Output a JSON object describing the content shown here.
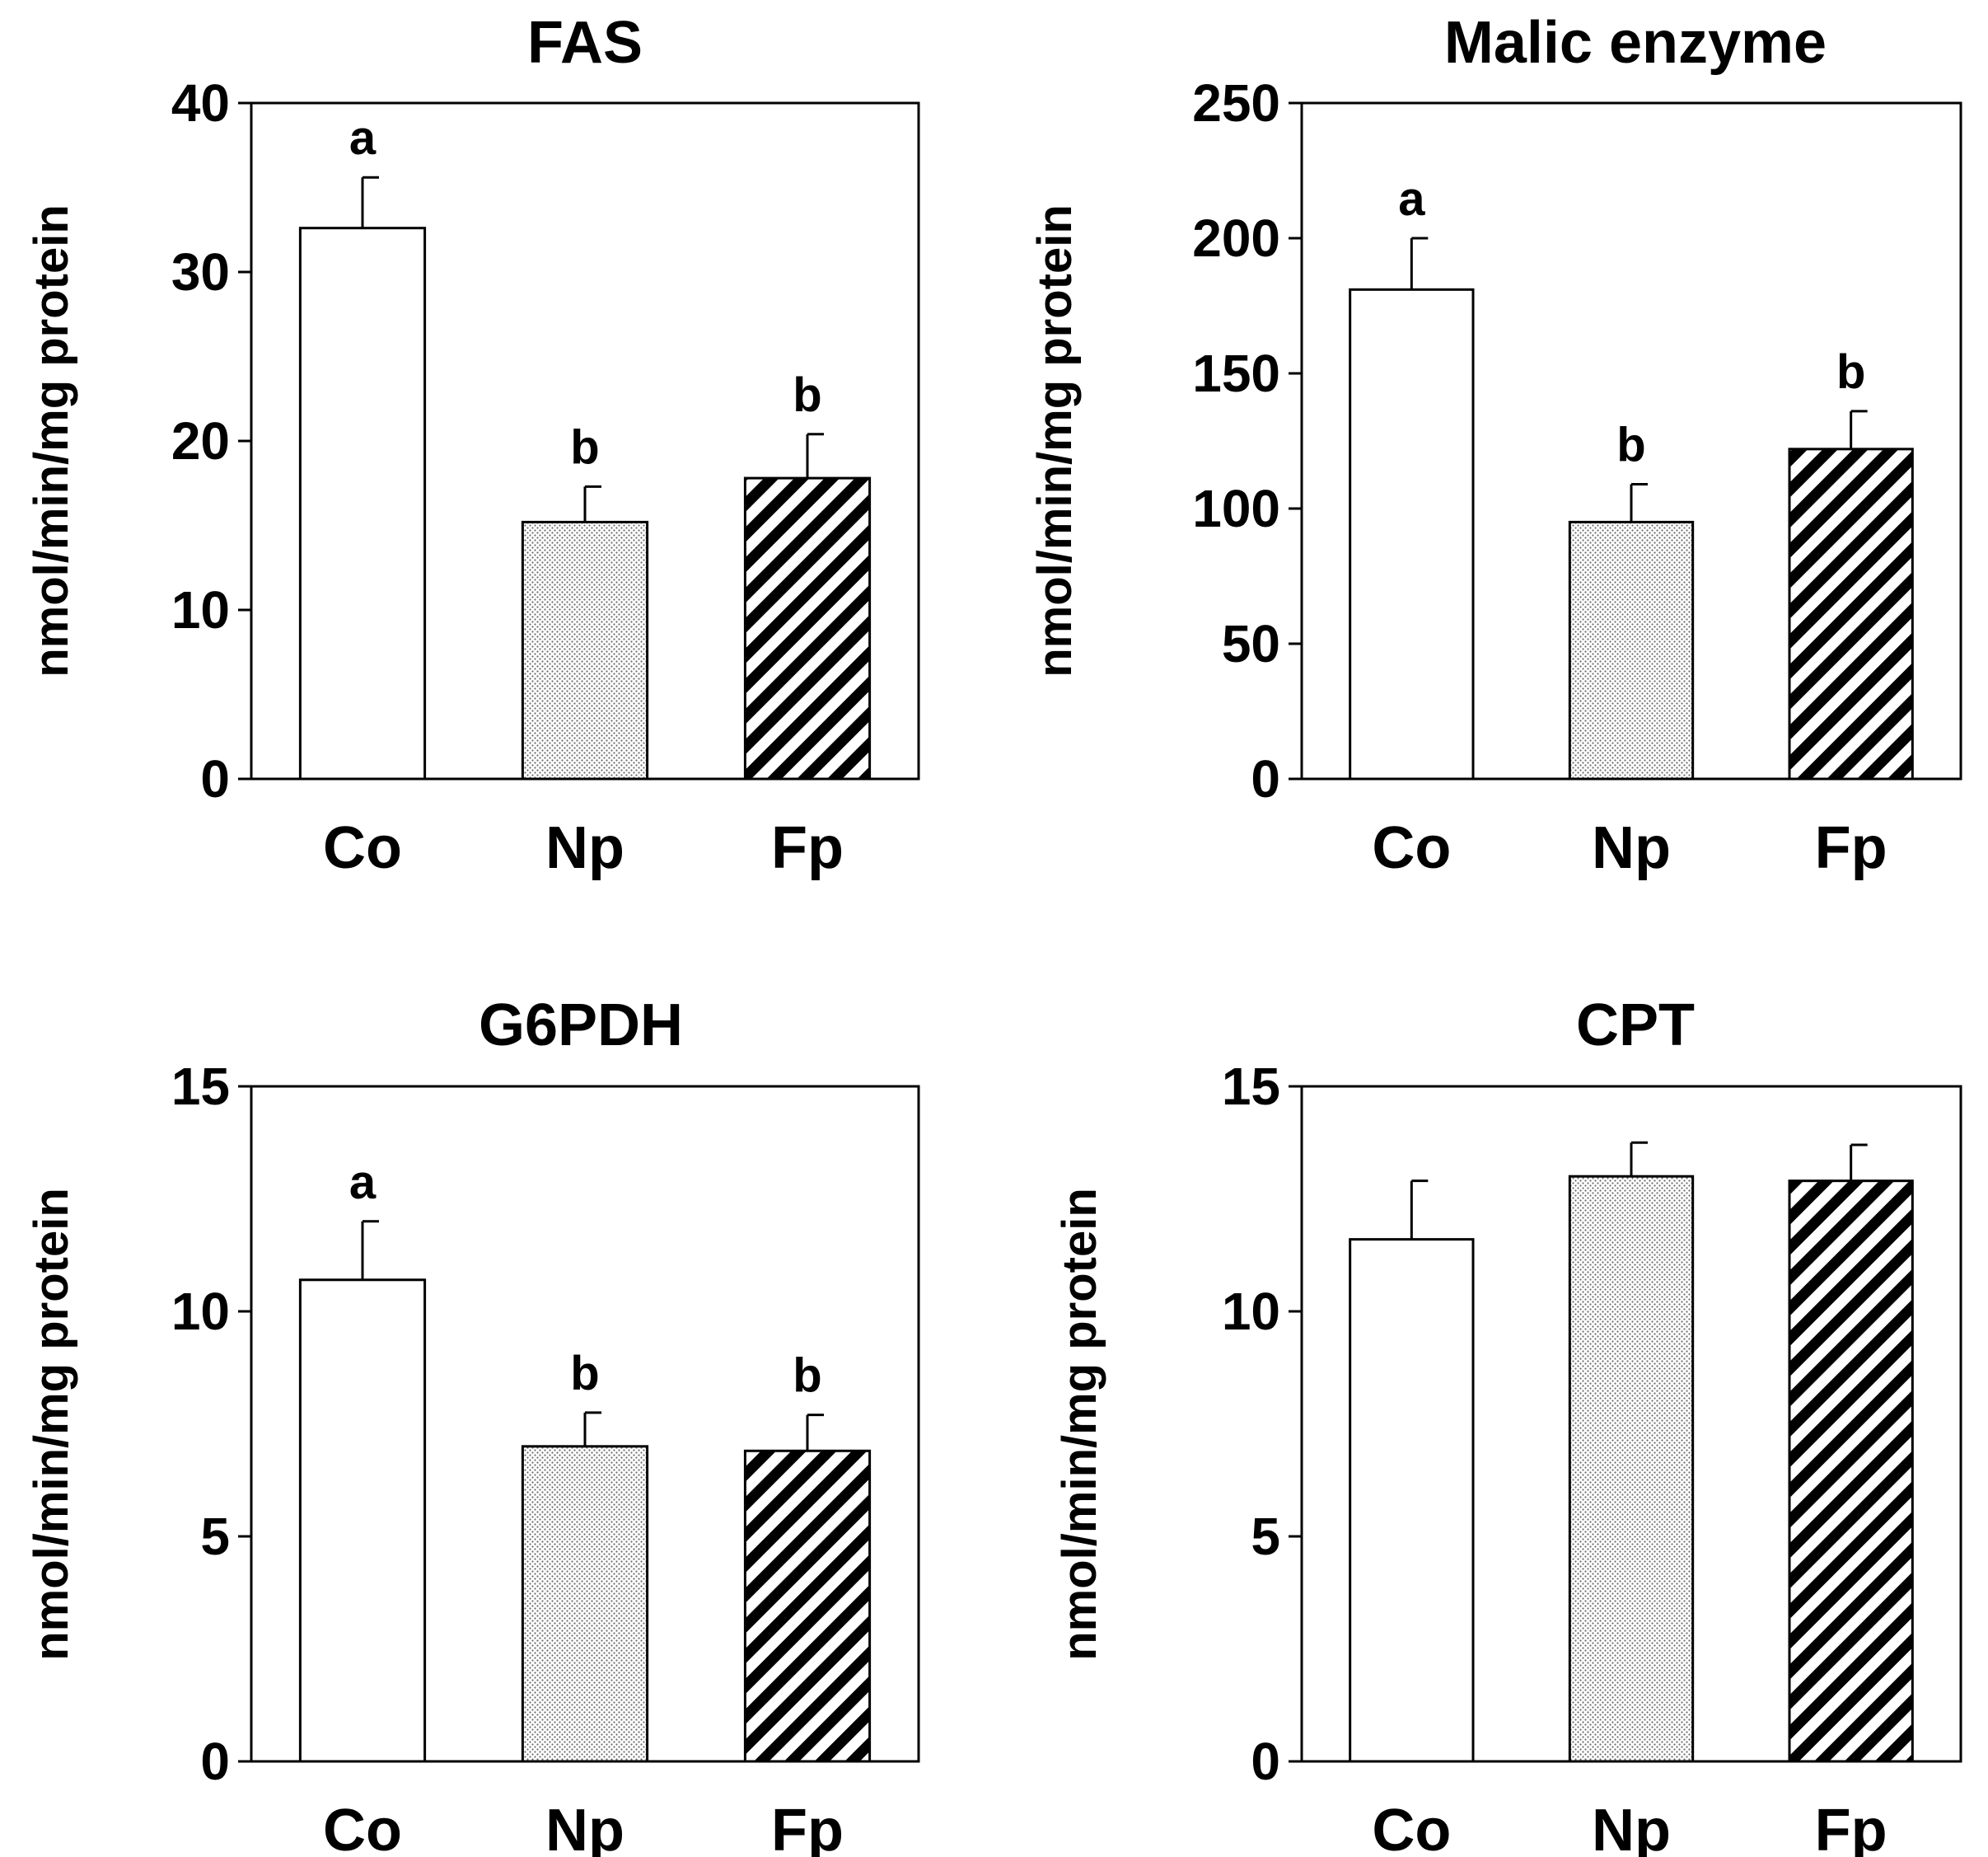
{
  "chart_data": [
    {
      "type": "bar",
      "title": "FAS",
      "ylabel": "nmol/min/mg protein",
      "xlabel": "",
      "categories": [
        "Co",
        "Np",
        "Fp"
      ],
      "values": [
        32.6,
        15.2,
        17.8
      ],
      "errors": [
        3.0,
        2.1,
        2.6
      ],
      "significance": [
        "a",
        "b",
        "b"
      ],
      "ylim": [
        0,
        40
      ],
      "yticks": [
        0,
        10,
        20,
        30,
        40
      ],
      "yticklabels": [
        "0",
        "10",
        "20",
        "30",
        "40"
      ]
    },
    {
      "type": "bar",
      "title": "Malic enzyme",
      "ylabel": "nmol/min/mg protein",
      "xlabel": "",
      "categories": [
        "Co",
        "Np",
        "Fp"
      ],
      "values": [
        181,
        95,
        122
      ],
      "errors": [
        19,
        14,
        14
      ],
      "significance": [
        "a",
        "b",
        "b"
      ],
      "ylim": [
        0,
        250
      ],
      "yticks": [
        0,
        50,
        100,
        150,
        200,
        250
      ],
      "yticklabels": [
        "0",
        "50",
        "100",
        "150",
        "200",
        "250"
      ]
    },
    {
      "type": "bar",
      "title": "G6PDH",
      "ylabel": "nmol/min/mg protein",
      "xlabel": "",
      "categories": [
        "Co",
        "Np",
        "Fp"
      ],
      "values": [
        10.7,
        7.0,
        6.9
      ],
      "errors": [
        1.3,
        0.75,
        0.8
      ],
      "significance": [
        "a",
        "b",
        "b"
      ],
      "ylim": [
        0,
        15
      ],
      "yticks": [
        0,
        5,
        10,
        15
      ],
      "yticklabels": [
        "0",
        "5",
        "10",
        "15"
      ]
    },
    {
      "type": "bar",
      "title": "CPT",
      "ylabel": "nmol/min/mg protein",
      "xlabel": "",
      "categories": [
        "Co",
        "Np",
        "Fp"
      ],
      "values": [
        11.6,
        13.0,
        12.9
      ],
      "errors": [
        1.3,
        0.75,
        0.8
      ],
      "significance": [
        "",
        "",
        ""
      ],
      "ylim": [
        0,
        15
      ],
      "yticks": [
        0,
        5,
        10,
        15
      ],
      "yticklabels": [
        "0",
        "5",
        "10",
        "15"
      ]
    }
  ],
  "fill_styles": [
    "empty-fill",
    "dotted-fill",
    "hatched-fill"
  ],
  "colors": {
    "ink": "#000000",
    "background": "#ffffff"
  }
}
